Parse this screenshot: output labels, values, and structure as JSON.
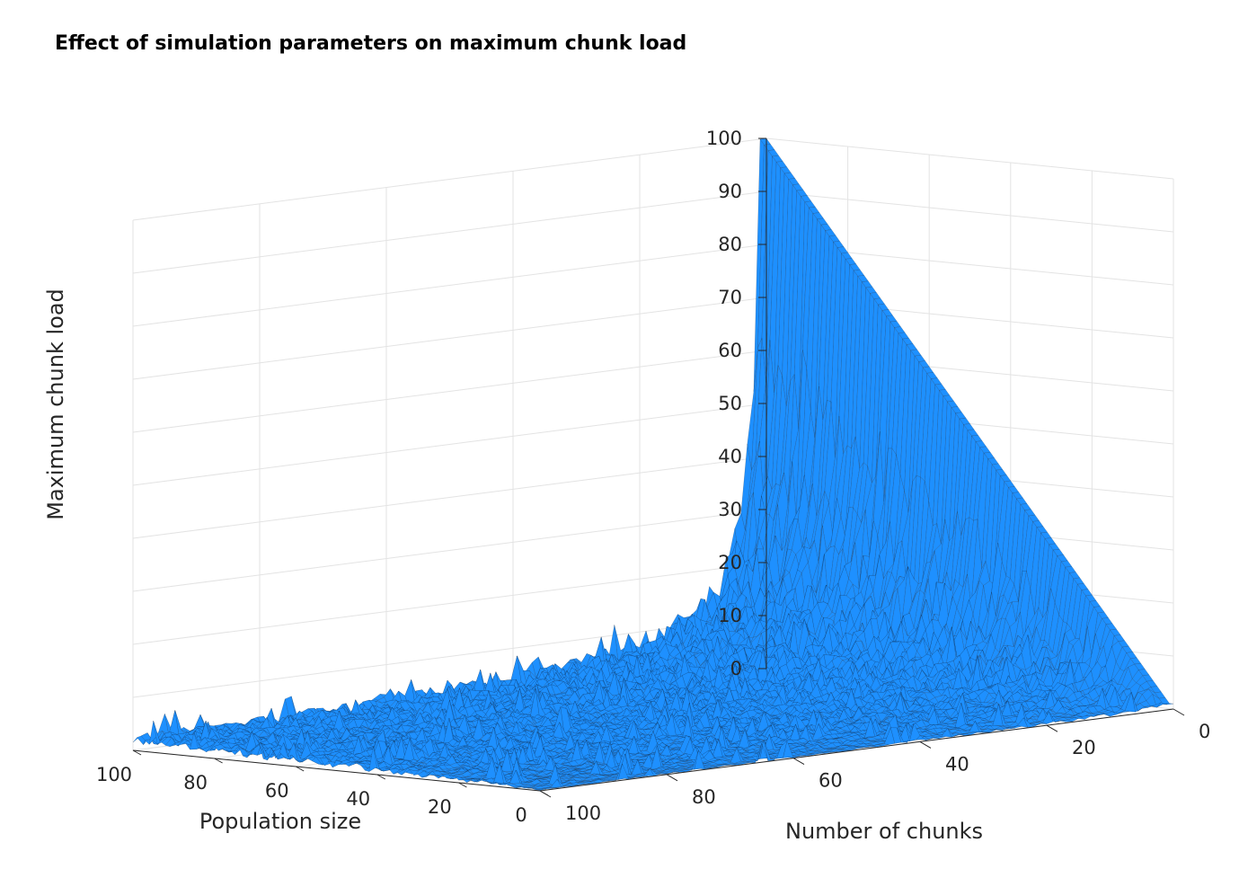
{
  "chart_data": {
    "type": "surface",
    "title": "Effect of simulation parameters on maximum chunk load",
    "xlabel": "Number of chunks",
    "ylabel": "Population size",
    "zlabel": "Maximum chunk load",
    "x_range": [
      0,
      100
    ],
    "y_range": [
      0,
      100
    ],
    "z_range": [
      0,
      100
    ],
    "x_ticks": [
      "0",
      "20",
      "40",
      "60",
      "80",
      "100"
    ],
    "y_ticks": [
      "0",
      "20",
      "40",
      "60",
      "80",
      "100"
    ],
    "z_ticks": [
      "0",
      "10",
      "20",
      "30",
      "40",
      "50",
      "60",
      "70",
      "80",
      "90",
      "100"
    ],
    "grid": true,
    "surface_color": "#1e90ff",
    "edge_color": "#102840",
    "sample_values": [
      {
        "chunks": 1,
        "population": 100,
        "max_load": 100
      },
      {
        "chunks": 1,
        "population": 50,
        "max_load": 50
      },
      {
        "chunks": 2,
        "population": 100,
        "max_load": 55
      },
      {
        "chunks": 5,
        "population": 100,
        "max_load": 30
      },
      {
        "chunks": 10,
        "population": 100,
        "max_load": 20
      },
      {
        "chunks": 50,
        "population": 100,
        "max_load": 8
      },
      {
        "chunks": 100,
        "population": 100,
        "max_load": 4
      },
      {
        "chunks": 100,
        "population": 1,
        "max_load": 1
      }
    ]
  }
}
